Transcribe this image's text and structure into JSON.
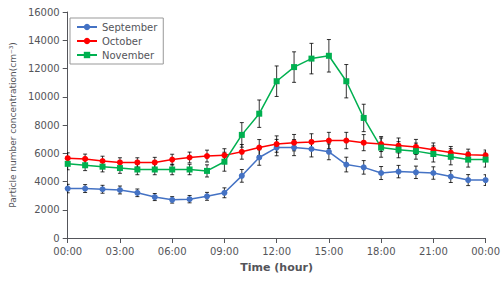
{
  "chart_data": {
    "type": "line",
    "xlabel": "Time (hour)",
    "ylabel": "Particle number concentration(cm⁻³)",
    "x": [
      0,
      1,
      2,
      3,
      4,
      5,
      6,
      7,
      8,
      9,
      10,
      11,
      12,
      13,
      14,
      15,
      16,
      17,
      18,
      19,
      20,
      21,
      22,
      23,
      24
    ],
    "series": [
      {
        "name": "September",
        "color": "#4472C4",
        "marker": "circle",
        "values": [
          3500,
          3500,
          3450,
          3400,
          3200,
          2900,
          2700,
          2750,
          2950,
          3200,
          4400,
          5700,
          6400,
          6400,
          6300,
          6100,
          5200,
          5000,
          4600,
          4700,
          4650,
          4600,
          4350,
          4100,
          4100
        ],
        "errors": [
          300,
          280,
          280,
          280,
          270,
          250,
          230,
          260,
          280,
          350,
          450,
          550,
          580,
          570,
          560,
          560,
          520,
          480,
          460,
          440,
          440,
          440,
          420,
          390,
          380
        ]
      },
      {
        "name": "October",
        "color": "#FF0000",
        "marker": "circle",
        "values": [
          5650,
          5600,
          5450,
          5350,
          5350,
          5350,
          5550,
          5700,
          5800,
          5850,
          6100,
          6400,
          6650,
          6750,
          6800,
          6900,
          6900,
          6750,
          6650,
          6550,
          6450,
          6250,
          6050,
          5900,
          5850
        ],
        "errors": [
          380,
          340,
          340,
          330,
          330,
          360,
          380,
          380,
          420,
          470,
          520,
          570,
          580,
          580,
          580,
          580,
          580,
          570,
          530,
          530,
          530,
          480,
          430,
          390,
          380
        ]
      },
      {
        "name": "November",
        "color": "#00B050",
        "marker": "square",
        "values": [
          5250,
          5150,
          5050,
          4950,
          4850,
          4850,
          4850,
          4850,
          4750,
          5400,
          7300,
          8800,
          11100,
          12100,
          12700,
          12900,
          11100,
          8500,
          6400,
          6250,
          6150,
          5950,
          5750,
          5550,
          5550
        ],
        "errors": [
          420,
          380,
          370,
          370,
          370,
          370,
          370,
          370,
          430,
          670,
          870,
          970,
          1080,
          1080,
          1080,
          1150,
          1180,
          970,
          680,
          570,
          570,
          570,
          570,
          530,
          530
        ]
      }
    ],
    "xlim": [
      0,
      24
    ],
    "xticks": [
      {
        "value": 0,
        "label": "00:00"
      },
      {
        "value": 3,
        "label": "03:00"
      },
      {
        "value": 6,
        "label": "06:00"
      },
      {
        "value": 9,
        "label": "09:00"
      },
      {
        "value": 12,
        "label": "12:00"
      },
      {
        "value": 15,
        "label": "15:00"
      },
      {
        "value": 18,
        "label": "18:00"
      },
      {
        "value": 21,
        "label": "21:00"
      },
      {
        "value": 24,
        "label": "00:00"
      }
    ],
    "ylim": [
      0,
      16000
    ],
    "yticks": [
      0,
      2000,
      4000,
      6000,
      8000,
      10000,
      12000,
      14000,
      16000
    ],
    "grid": false,
    "legend": "upper left"
  }
}
